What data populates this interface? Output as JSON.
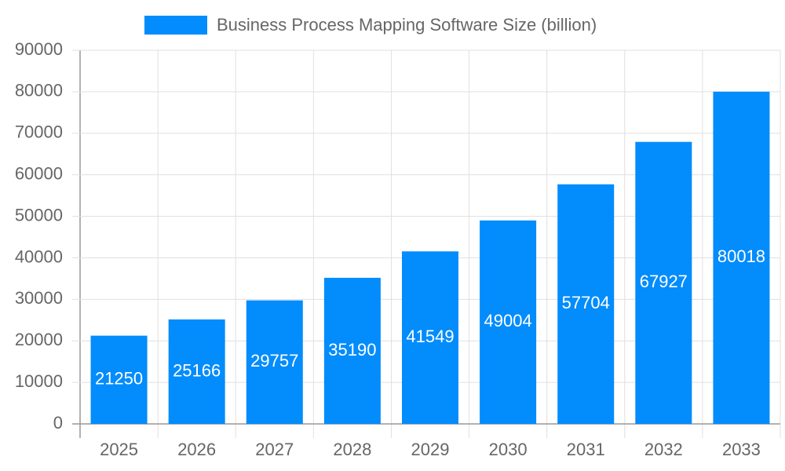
{
  "chart_data": {
    "type": "bar",
    "categories": [
      "2025",
      "2026",
      "2027",
      "2028",
      "2029",
      "2030",
      "2031",
      "2032",
      "2033"
    ],
    "series": [
      {
        "name": "Business Process Mapping Software Size (billion)",
        "color": "#038cfc",
        "values": [
          21250,
          25166,
          29757,
          35190,
          41549,
          49004,
          57704,
          67927,
          80018
        ]
      }
    ],
    "ylim": [
      0,
      90000
    ],
    "yticks": [
      0,
      10000,
      20000,
      30000,
      40000,
      50000,
      60000,
      70000,
      80000,
      90000
    ],
    "grid": true,
    "legend": "top",
    "data_labels": true
  }
}
